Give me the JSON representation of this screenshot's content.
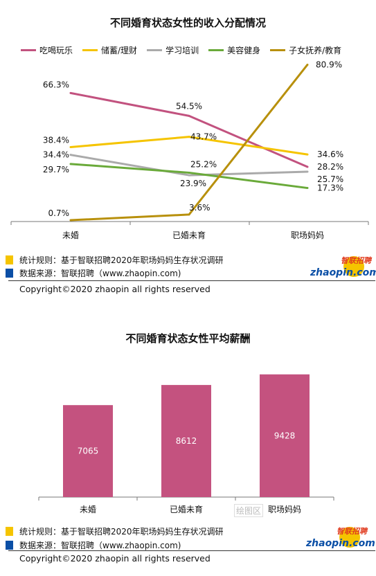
{
  "chart_data": [
    {
      "type": "line",
      "title": "不同婚育状态女性的收入分配情况",
      "categories": [
        "未婚",
        "已婚未育",
        "职场妈妈"
      ],
      "series": [
        {
          "name": "吃喝玩乐",
          "values": [
            66.3,
            54.5,
            28.2
          ],
          "labels": [
            "66.3%",
            "54.5%",
            "28.2%"
          ],
          "color": "#c2527f"
        },
        {
          "name": "储蓄/理财",
          "values": [
            38.4,
            43.7,
            34.6
          ],
          "labels": [
            "38.4%",
            "43.7%",
            "34.6%"
          ],
          "color": "#f5c400"
        },
        {
          "name": "学习培训",
          "values": [
            34.4,
            23.9,
            25.7
          ],
          "labels": [
            "34.4%",
            "23.9%",
            "25.7%"
          ],
          "color": "#aaaaaa"
        },
        {
          "name": "美容健身",
          "values": [
            29.7,
            25.2,
            17.3
          ],
          "labels": [
            "29.7%",
            "25.2%",
            "17.3%"
          ],
          "color": "#6aaa3a"
        },
        {
          "name": "子女抚养/教育",
          "values": [
            0.7,
            3.6,
            80.9
          ],
          "labels": [
            "0.7%",
            "3.6%",
            "80.9%"
          ],
          "color": "#b8900c"
        }
      ],
      "ylim": [
        0,
        85
      ],
      "grid": false,
      "legend": "top"
    },
    {
      "type": "bar",
      "title": "不同婚育状态女性平均薪酬",
      "categories": [
        "未婚",
        "已婚未育",
        "职场妈妈"
      ],
      "values": [
        7065,
        8612,
        9428
      ],
      "value_labels": [
        "7065",
        "8612",
        "9428"
      ],
      "color": "#c4527f",
      "ylim": [
        0,
        10000
      ],
      "grid": false
    }
  ],
  "footnotes": {
    "rule_label": "统计规则：基于智联招聘2020年职场妈妈生存状况调研",
    "source_label": "数据来源：智联招聘（www.zhaopin.com)",
    "copyright": "Copyright©2020 zhaopin all rights reserved",
    "rule_color": "#f5c400",
    "source_color": "#0b4fa6"
  },
  "logo": {
    "cn": "智联招聘",
    "en": "zhaopin.com"
  },
  "watermark": "绘图区"
}
